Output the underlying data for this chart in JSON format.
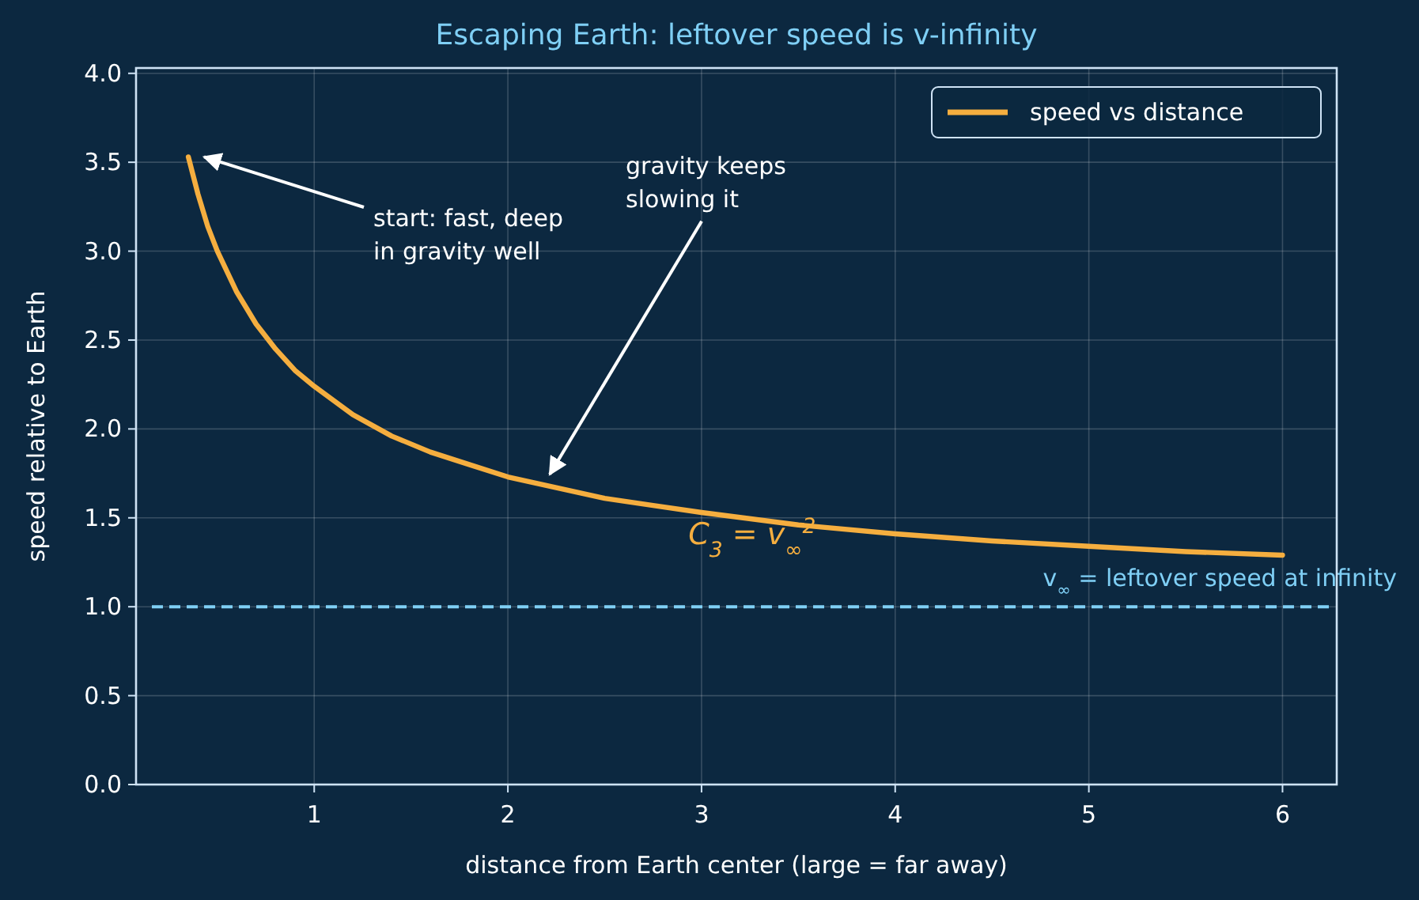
{
  "chart_data": {
    "type": "line",
    "title": "Escaping Earth: leftover speed is v-infinity",
    "xlabel": "distance from Earth center  (large = far away)",
    "ylabel": "speed relative to Earth",
    "x": [
      0.35,
      0.4,
      0.45,
      0.5,
      0.6,
      0.7,
      0.8,
      0.9,
      1.0,
      1.2,
      1.4,
      1.6,
      1.8,
      2.0,
      2.25,
      2.5,
      2.75,
      3.0,
      3.5,
      4.0,
      4.5,
      5.0,
      5.5,
      6.0
    ],
    "series": [
      {
        "name": "speed vs distance",
        "color": "#f5ae3f",
        "values": [
          3.53,
          3.32,
          3.14,
          3.0,
          2.77,
          2.59,
          2.45,
          2.33,
          2.24,
          2.08,
          1.96,
          1.87,
          1.8,
          1.73,
          1.67,
          1.61,
          1.57,
          1.53,
          1.46,
          1.41,
          1.37,
          1.34,
          1.31,
          1.29
        ]
      }
    ],
    "xlim": [
      0.08,
      6.28
    ],
    "ylim": [
      0,
      4.03
    ],
    "xticks": [
      1,
      2,
      3,
      4,
      5,
      6
    ],
    "yticks": [
      {
        "value": 0,
        "label": "0.0"
      },
      {
        "value": 0.5,
        "label": "0.5"
      },
      {
        "value": 1,
        "label": "1.0"
      },
      {
        "value": 1.5,
        "label": "1.5"
      },
      {
        "value": 2,
        "label": "2.0"
      },
      {
        "value": 2.5,
        "label": "2.5"
      },
      {
        "value": 3,
        "label": "3.0"
      },
      {
        "value": 3.5,
        "label": "3.5"
      },
      {
        "value": 4,
        "label": "4.0"
      }
    ],
    "ref_lines": [
      {
        "axis": "y",
        "value": 1,
        "label": "v$_{∞}$ = leftover speed at infinity",
        "color": "#7fcff5",
        "line_style": "dashed"
      }
    ],
    "annotations": [
      "start: fast, deep\nin gravity well",
      {
        "text": "gravity keeps\nslowing it",
        "x": 2.2,
        "y": 1.7
      },
      "C$_{3}$ = v$_{∞}$$^{2}$"
    ],
    "grid": true,
    "legend": "top right",
    "line_style": "solid",
    "marker": "none"
  }
}
